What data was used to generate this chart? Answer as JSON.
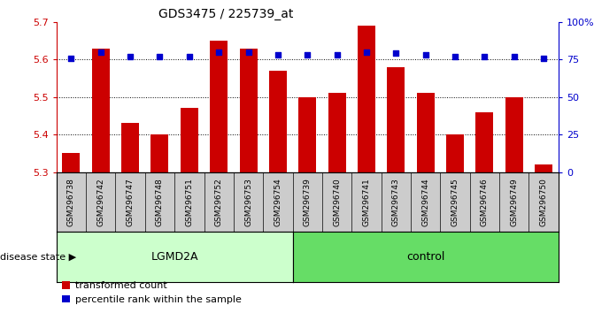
{
  "title": "GDS3475 / 225739_at",
  "samples": [
    "GSM296738",
    "GSM296742",
    "GSM296747",
    "GSM296748",
    "GSM296751",
    "GSM296752",
    "GSM296753",
    "GSM296754",
    "GSM296739",
    "GSM296740",
    "GSM296741",
    "GSM296743",
    "GSM296744",
    "GSM296745",
    "GSM296746",
    "GSM296749",
    "GSM296750"
  ],
  "bar_values": [
    5.35,
    5.63,
    5.43,
    5.4,
    5.47,
    5.65,
    5.63,
    5.57,
    5.5,
    5.51,
    5.69,
    5.58,
    5.51,
    5.4,
    5.46,
    5.5,
    5.32
  ],
  "percentile_values": [
    76,
    80,
    77,
    77,
    77,
    80,
    80,
    78,
    78,
    78,
    80,
    79,
    78,
    77,
    77,
    77,
    76
  ],
  "lgmd2a_count": 8,
  "control_count": 9,
  "ylim_left": [
    5.3,
    5.7
  ],
  "ylim_right": [
    0,
    100
  ],
  "yticks_left": [
    5.3,
    5.4,
    5.5,
    5.6,
    5.7
  ],
  "yticks_right": [
    0,
    25,
    50,
    75,
    100
  ],
  "ytick_labels_right": [
    "0",
    "25",
    "50",
    "75",
    "100%"
  ],
  "bar_color": "#cc0000",
  "dot_color": "#0000cc",
  "lgmd2a_color": "#ccffcc",
  "control_color": "#66dd66",
  "tick_bg_color": "#cccccc",
  "bar_width": 0.6,
  "legend_items": [
    "transformed count",
    "percentile rank within the sample"
  ],
  "legend_colors": [
    "#cc0000",
    "#0000cc"
  ],
  "disease_state_label": "disease state",
  "lgmd2a_label": "LGMD2A",
  "control_label": "control"
}
